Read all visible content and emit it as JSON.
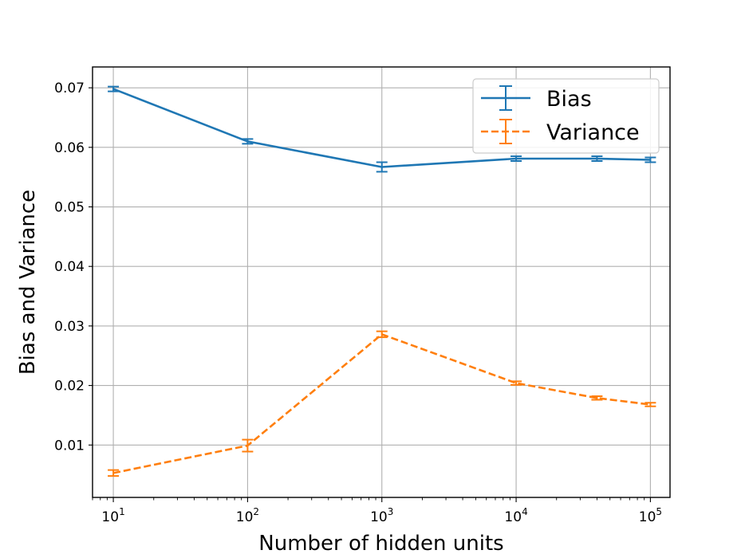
{
  "chart_data": {
    "type": "line",
    "xscale": "log",
    "xlim": [
      7,
      140000
    ],
    "ylim": [
      0.0012,
      0.0735
    ],
    "xlabel": "Number of hidden units",
    "ylabel": "Bias and Variance",
    "grid": true,
    "legend_position": "upper-right",
    "x_ticks": [
      {
        "value": 10,
        "base": "10",
        "exp": "1"
      },
      {
        "value": 100,
        "base": "10",
        "exp": "2"
      },
      {
        "value": 1000,
        "base": "10",
        "exp": "3"
      },
      {
        "value": 10000,
        "base": "10",
        "exp": "4"
      },
      {
        "value": 100000,
        "base": "10",
        "exp": "5"
      }
    ],
    "y_ticks": [
      {
        "value": 0.01,
        "label": "0.01"
      },
      {
        "value": 0.02,
        "label": "0.02"
      },
      {
        "value": 0.03,
        "label": "0.03"
      },
      {
        "value": 0.04,
        "label": "0.04"
      },
      {
        "value": 0.05,
        "label": "0.05"
      },
      {
        "value": 0.06,
        "label": "0.06"
      },
      {
        "value": 0.07,
        "label": "0.07"
      }
    ],
    "series": [
      {
        "name": "Bias",
        "color": "#1f77b4",
        "linestyle": "solid",
        "x": [
          10,
          100,
          1000,
          10000,
          40000,
          100000
        ],
        "y": [
          0.0698,
          0.061,
          0.0567,
          0.0581,
          0.0581,
          0.0579
        ],
        "yerr": [
          0.0004,
          0.0004,
          0.0008,
          0.0004,
          0.0004,
          0.0004
        ]
      },
      {
        "name": "Variance",
        "color": "#ff7f0e",
        "linestyle": "dashed",
        "x": [
          10,
          100,
          1000,
          10000,
          40000,
          100000
        ],
        "y": [
          0.0053,
          0.0099,
          0.0286,
          0.0204,
          0.0179,
          0.0168
        ],
        "yerr": [
          0.0005,
          0.001,
          0.0005,
          0.0003,
          0.0003,
          0.0003
        ]
      }
    ]
  }
}
